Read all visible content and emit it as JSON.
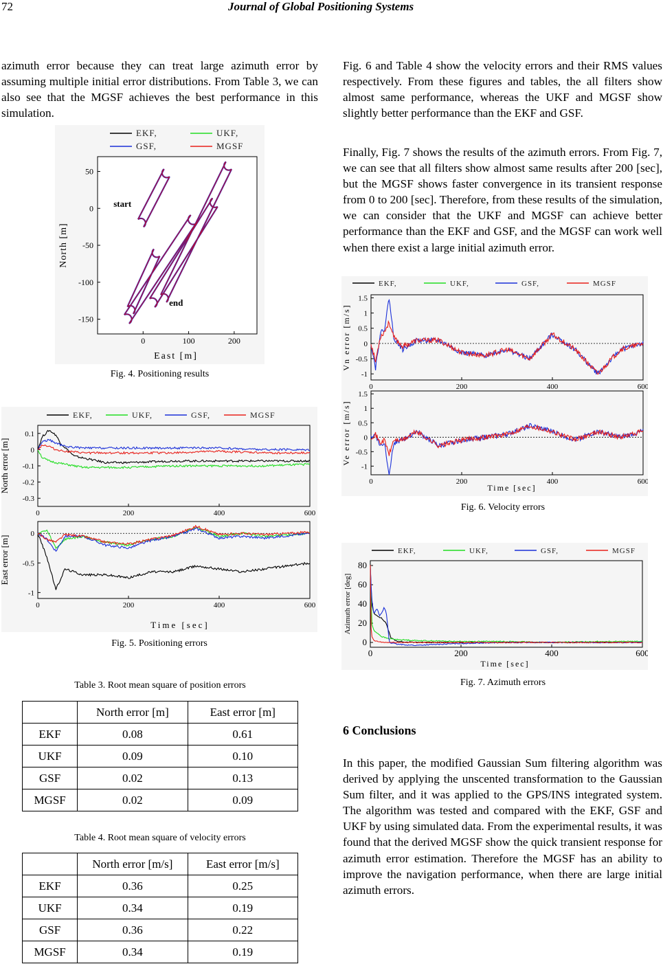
{
  "header": {
    "page_number": "72",
    "journal": "Journal of Global Positioning Systems"
  },
  "left_paragraph": "azimuth error because they can treat large azimuth error by assuming multiple initial error distributions. From Table 3, we can also see that the MGSF achieves the best performance in this simulation.",
  "right_paragraph_1": "Fig. 6 and Table 4 show the velocity errors and their RMS values respectively. From these figures and tables, the all filters show almost same performance, whereas the UKF and MGSF show slightly better performance than the EKF and GSF.",
  "right_paragraph_2": "Finally, Fig. 7 shows the results of the azimuth errors. From Fig. 7, we can see that all filters show almost same results after 200 [sec], but the MGSF shows faster convergence in its transient response from 0 to 200 [sec]. Therefore, from these results of the simulation, we can consider that the UKF and MGSF can achieve better performance than the EKF and GSF, and the MGSF can work well when there exist a large initial azimuth error.",
  "colors": {
    "EKF": "#000000",
    "UKF": "#22dd22",
    "GSF": "#1a2fd8",
    "MGSF": "#e8201a",
    "track": "#b0103a"
  },
  "chart_data": [
    {
      "id": "fig4",
      "type": "line",
      "caption": "Fig. 4. Positioning results",
      "xlabel": "East [m]",
      "ylabel": "North [m]",
      "xlim": [
        -100,
        250
      ],
      "ylim": [
        -170,
        70
      ],
      "xticks": [
        "0",
        "100",
        "200"
      ],
      "yticks": [
        "50",
        "0",
        "-50",
        "-100",
        "-150"
      ],
      "legend": [
        "EKF,",
        "UKF,",
        "GSF,",
        "MGSF"
      ],
      "annotations": [
        "start",
        "end"
      ],
      "series": [
        {
          "name": "trajectory",
          "x": [
            0,
            50,
            55,
            52,
            -5,
            -8,
            0,
            50,
            55,
            52,
            -30,
            -33,
            -25,
            150,
            155,
            152,
            -40,
            -42,
            -35,
            185,
            190,
            187,
            50
          ],
          "y": [
            0,
            50,
            48,
            43,
            -20,
            -27,
            -33,
            -50,
            -55,
            -60,
            -150,
            -155,
            -160,
            10,
            12,
            8,
            -130,
            -135,
            -140,
            60,
            62,
            55,
            -130
          ]
        }
      ]
    },
    {
      "id": "fig5",
      "type": "line",
      "caption": "Fig. 5. Positioning errors",
      "xlabel": "Time [sec]",
      "legend": [
        "EKF,",
        "UKF,",
        "GSF,",
        "MGSF"
      ],
      "panels": [
        {
          "ylabel": "North error [m]",
          "xlim": [
            0,
            600
          ],
          "ylim": [
            -0.35,
            0.15
          ],
          "xticks": [
            "0",
            "200",
            "400",
            "600"
          ],
          "yticks": [
            "0.1",
            "0",
            "-0.1",
            "-0.2",
            "-0.3"
          ],
          "series": [
            {
              "name": "EKF",
              "x": [
                0,
                10,
                25,
                40,
                50,
                80,
                150,
                200,
                300,
                400,
                500,
                600
              ],
              "y": [
                0,
                0.08,
                0.12,
                0.09,
                0.04,
                -0.04,
                -0.08,
                -0.08,
                -0.07,
                -0.07,
                -0.07,
                -0.07
              ]
            },
            {
              "name": "UKF",
              "x": [
                0,
                10,
                25,
                40,
                60,
                100,
                200,
                300,
                400,
                500,
                600
              ],
              "y": [
                0,
                -0.05,
                -0.07,
                -0.08,
                -0.09,
                -0.11,
                -0.11,
                -0.1,
                -0.1,
                -0.1,
                -0.09
              ]
            },
            {
              "name": "GSF",
              "x": [
                0,
                10,
                25,
                40,
                60,
                100,
                200,
                300,
                400,
                500,
                600
              ],
              "y": [
                0,
                0.05,
                0.06,
                0.04,
                0.02,
                0.01,
                0.01,
                0.01,
                0.01,
                0.0,
                0.0
              ]
            },
            {
              "name": "MGSF",
              "x": [
                0,
                10,
                25,
                40,
                60,
                100,
                200,
                300,
                400,
                500,
                600
              ],
              "y": [
                0,
                0.03,
                0.02,
                0.0,
                -0.01,
                -0.02,
                -0.02,
                -0.02,
                -0.01,
                -0.02,
                -0.02
              ]
            }
          ]
        },
        {
          "ylabel": "East error [m]",
          "xlim": [
            0,
            600
          ],
          "ylim": [
            -1.1,
            0.2
          ],
          "xticks": [
            "0",
            "200",
            "400",
            "600"
          ],
          "yticks": [
            "0",
            "-0.5",
            "-1"
          ],
          "series": [
            {
              "name": "EKF",
              "x": [
                0,
                20,
                40,
                60,
                100,
                150,
                200,
                250,
                300,
                350,
                400,
                450,
                500,
                600
              ],
              "y": [
                0,
                -0.4,
                -0.95,
                -0.6,
                -0.7,
                -0.7,
                -0.75,
                -0.65,
                -0.65,
                -0.55,
                -0.6,
                -0.65,
                -0.6,
                -0.5
              ]
            },
            {
              "name": "UKF",
              "x": [
                0,
                20,
                40,
                60,
                100,
                150,
                200,
                250,
                300,
                350,
                400,
                450,
                500,
                600
              ],
              "y": [
                0,
                0.05,
                -0.25,
                -0.1,
                -0.05,
                -0.15,
                -0.2,
                -0.1,
                -0.05,
                0.1,
                -0.05,
                0.0,
                -0.05,
                0.0
              ]
            },
            {
              "name": "GSF",
              "x": [
                0,
                20,
                40,
                60,
                100,
                150,
                200,
                250,
                300,
                350,
                400,
                450,
                500,
                600
              ],
              "y": [
                0,
                -0.1,
                -0.3,
                -0.05,
                -0.05,
                -0.2,
                -0.25,
                -0.12,
                -0.05,
                0.08,
                -0.08,
                -0.05,
                -0.08,
                0.0
              ]
            },
            {
              "name": "MGSF",
              "x": [
                0,
                20,
                40,
                60,
                100,
                150,
                200,
                250,
                300,
                350,
                400,
                450,
                500,
                600
              ],
              "y": [
                0,
                -0.1,
                -0.15,
                -0.02,
                -0.05,
                -0.15,
                -0.18,
                -0.1,
                -0.03,
                0.12,
                -0.02,
                0.0,
                -0.02,
                0.02
              ]
            }
          ]
        }
      ]
    },
    {
      "id": "fig6",
      "type": "line",
      "caption": "Fig. 6. Velocity errors",
      "xlabel": "Time [sec]",
      "legend": [
        "EKF,",
        "UKF,",
        "GSF,",
        "MGSF"
      ],
      "panels": [
        {
          "ylabel": "Vn error [m/s]",
          "xlim": [
            0,
            600
          ],
          "ylim": [
            -1.2,
            1.6
          ],
          "xticks": [
            "0",
            "200",
            "400",
            "600"
          ],
          "yticks": [
            "1.5",
            "1",
            "0.5",
            "0",
            "-0.5",
            "-1"
          ],
          "series": [
            {
              "name": "GSF",
              "x": [
                0,
                10,
                20,
                30,
                40,
                50,
                70,
                100,
                150,
                200,
                250,
                300,
                350,
                400,
                450,
                500,
                550,
                600
              ],
              "y": [
                0,
                -0.8,
                0.3,
                0.5,
                1.5,
                0.2,
                -0.2,
                0.1,
                0.1,
                -0.3,
                -0.4,
                -0.2,
                -0.5,
                0.3,
                -0.2,
                -1.0,
                -0.2,
                0.0
              ]
            },
            {
              "name": "MGSF",
              "x": [
                0,
                10,
                20,
                30,
                40,
                50,
                70,
                100,
                150,
                200,
                250,
                300,
                350,
                400,
                450,
                500,
                550,
                600
              ],
              "y": [
                0,
                -0.6,
                0.2,
                0.4,
                0.7,
                0.2,
                -0.1,
                0.1,
                0.1,
                -0.3,
                -0.4,
                -0.2,
                -0.5,
                0.3,
                -0.2,
                -1.0,
                -0.2,
                0.0
              ]
            }
          ]
        },
        {
          "ylabel": "Ve error [m/s]",
          "xlim": [
            0,
            600
          ],
          "ylim": [
            -1.3,
            1.6
          ],
          "xticks": [
            "0",
            "200",
            "400",
            "600"
          ],
          "yticks": [
            "1.5",
            "1",
            "0.5",
            "0",
            "-0.5",
            "-1"
          ],
          "series": [
            {
              "name": "GSF",
              "x": [
                0,
                10,
                20,
                30,
                40,
                50,
                70,
                100,
                150,
                200,
                250,
                300,
                350,
                400,
                450,
                500,
                550,
                600
              ],
              "y": [
                0,
                0.1,
                -0.3,
                -0.2,
                -1.3,
                -0.2,
                -0.1,
                0.2,
                -0.3,
                -0.1,
                0.0,
                0.1,
                0.4,
                0.2,
                -0.1,
                0.2,
                0.0,
                0.2
              ]
            },
            {
              "name": "MGSF",
              "x": [
                0,
                10,
                20,
                30,
                40,
                50,
                70,
                100,
                150,
                200,
                250,
                300,
                350,
                400,
                450,
                500,
                550,
                600
              ],
              "y": [
                0,
                0.1,
                -0.2,
                -0.1,
                -0.6,
                -0.1,
                -0.1,
                0.2,
                -0.3,
                -0.1,
                0.0,
                0.1,
                0.4,
                0.2,
                -0.1,
                0.2,
                0.0,
                0.2
              ]
            }
          ]
        }
      ]
    },
    {
      "id": "fig7",
      "type": "line",
      "caption": "Fig. 7. Azimuth errors",
      "xlabel": "Time [sec]",
      "ylabel": "Azimuth error [deg]",
      "xlim": [
        0,
        600
      ],
      "ylim": [
        -5,
        85
      ],
      "xticks": [
        "0",
        "200",
        "400",
        "600"
      ],
      "yticks": [
        "80",
        "60",
        "40",
        "20",
        "0"
      ],
      "legend": [
        "EKF,",
        "UKF,",
        "GSF,",
        "MGSF"
      ],
      "series": [
        {
          "name": "EKF",
          "x": [
            0,
            3,
            8,
            15,
            25,
            35,
            45,
            60,
            100,
            200,
            300,
            400,
            500,
            600
          ],
          "y": [
            80,
            40,
            30,
            28,
            25,
            20,
            5,
            1,
            0,
            0,
            0,
            0,
            0,
            0
          ]
        },
        {
          "name": "UKF",
          "x": [
            0,
            3,
            8,
            15,
            25,
            40,
            60,
            100,
            200,
            300,
            400,
            500,
            600
          ],
          "y": [
            80,
            20,
            12,
            10,
            6,
            4,
            3,
            2,
            1,
            1,
            0,
            1,
            1
          ]
        },
        {
          "name": "GSF",
          "x": [
            0,
            3,
            8,
            15,
            20,
            25,
            30,
            35,
            42,
            60,
            100,
            150,
            200,
            300,
            400,
            500,
            600
          ],
          "y": [
            80,
            45,
            30,
            35,
            28,
            30,
            36,
            32,
            0,
            -2,
            -3,
            -2,
            -1,
            0,
            0,
            0,
            0
          ]
        },
        {
          "name": "MGSF",
          "x": [
            0,
            2,
            4,
            8,
            15,
            30,
            60,
            100,
            200,
            300,
            400,
            500,
            600
          ],
          "y": [
            80,
            10,
            5,
            2,
            1,
            0,
            0,
            0,
            0,
            0,
            0,
            0,
            0
          ]
        }
      ]
    }
  ],
  "table3": {
    "caption": "Table 3. Root mean square of position errors",
    "headers": [
      "",
      "North error [m]",
      "East error [m]"
    ],
    "rows": [
      [
        "EKF",
        "0.08",
        "0.61"
      ],
      [
        "UKF",
        "0.09",
        "0.10"
      ],
      [
        "GSF",
        "0.02",
        "0.13"
      ],
      [
        "MGSF",
        "0.02",
        "0.09"
      ]
    ]
  },
  "table4": {
    "caption": "Table 4. Root mean square of velocity errors",
    "headers": [
      "",
      "North error [m/s]",
      "East error [m/s]"
    ],
    "rows": [
      [
        "EKF",
        "0.36",
        "0.25"
      ],
      [
        "UKF",
        "0.34",
        "0.19"
      ],
      [
        "GSF",
        "0.36",
        "0.22"
      ],
      [
        "MGSF",
        "0.34",
        "0.19"
      ]
    ]
  },
  "conclusions": {
    "heading": "6 Conclusions",
    "text": "In this paper, the modified Gaussian Sum filtering algorithm was derived by applying the unscented transformation to the Gaussian Sum filter, and it was applied to the GPS/INS integrated system. The algorithm was tested and compared with the EKF, GSF and UKF by using simulated data. From the experimental results, it was found that the derived MGSF show the quick transient response for azimuth error estimation. Therefore the MGSF has an ability to improve the navigation performance, when there are large initial azimuth errors."
  }
}
